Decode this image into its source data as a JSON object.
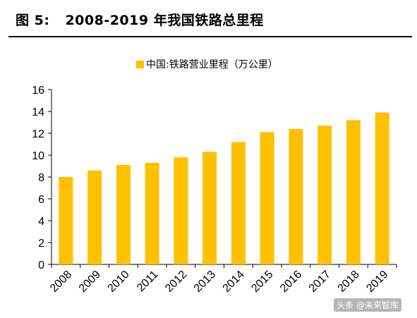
{
  "figure": {
    "number_label": "图 5:",
    "title": "2008-2019 年我国铁路总里程"
  },
  "watermark": "头条 @未来智库",
  "colors": {
    "bar": "#FFC000",
    "axis": "#000000"
  },
  "chart_data": {
    "type": "bar",
    "title": "",
    "xlabel": "",
    "ylabel": "",
    "categories": [
      "2008",
      "2009",
      "2010",
      "2011",
      "2012",
      "2013",
      "2014",
      "2015",
      "2016",
      "2017",
      "2018",
      "2019"
    ],
    "series": [
      {
        "name": "中国:铁路营业里程（万公里）",
        "values": [
          8.0,
          8.6,
          9.1,
          9.3,
          9.8,
          10.3,
          11.2,
          12.1,
          12.4,
          12.7,
          13.2,
          13.9
        ]
      }
    ],
    "ylim": [
      0,
      16
    ],
    "yticks": [
      0,
      2,
      4,
      6,
      8,
      10,
      12,
      14,
      16
    ],
    "grid": false,
    "legend_position": "top-center"
  }
}
